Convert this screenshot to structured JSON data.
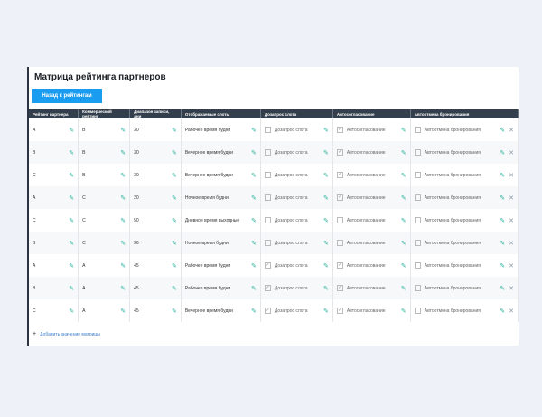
{
  "title": "Матрица рейтинга партнеров",
  "back_button": "Назад к рейтингам",
  "columns": [
    "Рейтинг партнера",
    "Коммерческий рейтинг",
    "Диапазон записи, дни",
    "Отображаемые слоты",
    "Дозапрос слота",
    "Автосогласование",
    "Автоотмена бронирования"
  ],
  "rows": [
    {
      "partner": "A",
      "commercial": "B",
      "range": "30",
      "slots": "Рабочее время будни",
      "dozapros": false,
      "auto_agree": true,
      "auto_cancel": false
    },
    {
      "partner": "B",
      "commercial": "B",
      "range": "30",
      "slots": "Вечернее время будни",
      "dozapros": false,
      "auto_agree": true,
      "auto_cancel": false
    },
    {
      "partner": "C",
      "commercial": "B",
      "range": "30",
      "slots": "Вечернее время будни",
      "dozapros": false,
      "auto_agree": true,
      "auto_cancel": false
    },
    {
      "partner": "A",
      "commercial": "C",
      "range": "20",
      "slots": "Ночное время будни",
      "dozapros": false,
      "auto_agree": true,
      "auto_cancel": false
    },
    {
      "partner": "C",
      "commercial": "C",
      "range": "50",
      "slots": "Дневное время выходные",
      "dozapros": false,
      "auto_agree": false,
      "auto_cancel": false
    },
    {
      "partner": "B",
      "commercial": "C",
      "range": "36",
      "slots": "Ночное время будни",
      "dozapros": false,
      "auto_agree": false,
      "auto_cancel": false
    },
    {
      "partner": "A",
      "commercial": "A",
      "range": "45",
      "slots": "Рабочее время будни",
      "dozapros": true,
      "auto_agree": true,
      "auto_cancel": false
    },
    {
      "partner": "B",
      "commercial": "A",
      "range": "45",
      "slots": "Рабочее время будни",
      "dozapros": true,
      "auto_agree": true,
      "auto_cancel": false
    },
    {
      "partner": "C",
      "commercial": "A",
      "range": "45",
      "slots": "Вечернее время будни",
      "dozapros": true,
      "auto_agree": true,
      "auto_cancel": false
    }
  ],
  "checkbox_labels": {
    "dozapros": "Дозапрос слота",
    "auto_agree": "Автосогласование",
    "auto_cancel": "Автоотмена бронирования"
  },
  "add_link": "Добавить значение матрицы",
  "icons": {
    "edit": "pencil-icon",
    "delete": "close-icon",
    "add": "plus-icon"
  }
}
